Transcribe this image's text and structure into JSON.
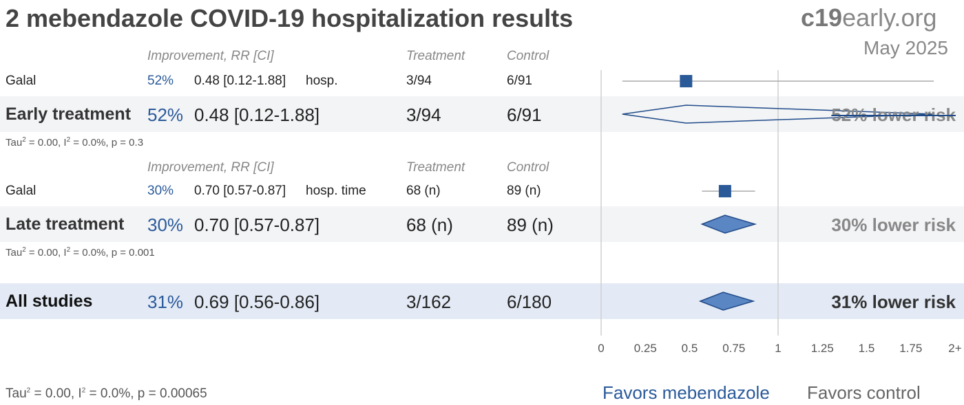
{
  "title": "2 mebendazole COVID-19 hospitalization results",
  "brand": {
    "bold": "c19",
    "rest": "early.org"
  },
  "date": "May 2025",
  "headers": {
    "improvement": "Improvement, RR [CI]",
    "treatment": "Treatment",
    "control": "Control"
  },
  "groups": [
    {
      "header_visible": true,
      "studies": [
        {
          "name": "Galal",
          "improvement": "52%",
          "rr_ci": "0.48 [0.12-1.88]",
          "outcome": "hosp.",
          "treatment": "3/94",
          "control": "6/91"
        }
      ],
      "summary": {
        "label": "Early treatment",
        "improvement": "52%",
        "rr_ci": "0.48 [0.12-1.88]",
        "treatment": "3/94",
        "control": "6/91",
        "risk_text": "52% lower risk"
      },
      "stats": {
        "tau": "Tau",
        "i": ", I",
        "rest": " = 0.00",
        "i_rest": " = 0.0%, p = 0.3"
      }
    },
    {
      "header_visible": true,
      "studies": [
        {
          "name": "Galal",
          "improvement": "30%",
          "rr_ci": "0.70 [0.57-0.87]",
          "outcome": "hosp. time",
          "treatment": "68 (n)",
          "control": "89 (n)"
        }
      ],
      "summary": {
        "label": "Late treatment",
        "improvement": "30%",
        "rr_ci": "0.70 [0.57-0.87]",
        "treatment": "68 (n)",
        "control": "89 (n)",
        "risk_text": "30% lower risk"
      },
      "stats": {
        "tau": "Tau",
        "i": ", I",
        "rest": " = 0.00",
        "i_rest": " = 0.0%, p = 0.001"
      }
    }
  ],
  "overall": {
    "label": "All studies",
    "improvement": "31%",
    "rr_ci": "0.69 [0.56-0.86]",
    "treatment": "3/162",
    "control": "6/180",
    "risk_text": "31% lower risk"
  },
  "overall_stats": {
    "tau": "Tau",
    "i": ", I",
    "rest": " = 0.00",
    "i_rest": " = 0.0%, p = 0.00065"
  },
  "favors": {
    "left": "Favors mebendazole",
    "right": "Favors control"
  },
  "colors": {
    "marker": "#2b5a98",
    "diamond_fill": "#5b86c4",
    "diamond_stroke": "#1f4a88",
    "ci_line": "#aaaaaa",
    "axis": "#cfcfcf",
    "favor_left": "#2a5a9a",
    "favor_right": "#666666"
  },
  "chart_data": {
    "type": "forest",
    "xlim": [
      0,
      2
    ],
    "x_ticks": [
      "0",
      "0.25",
      "0.5",
      "0.75",
      "1",
      "1.25",
      "1.5",
      "1.75",
      "2+"
    ],
    "tick_values": [
      0,
      0.25,
      0.5,
      0.75,
      1,
      1.25,
      1.5,
      1.75,
      2
    ],
    "reference_line": 1,
    "rows": [
      {
        "label": "Galal (hosp.)",
        "kind": "study",
        "rr": 0.48,
        "lo": 0.12,
        "hi": 1.88
      },
      {
        "label": "Early treatment",
        "kind": "summary",
        "rr": 0.48,
        "lo": 0.12,
        "hi": 1.88
      },
      {
        "label": "Galal (hosp. time)",
        "kind": "study",
        "rr": 0.7,
        "lo": 0.57,
        "hi": 0.87
      },
      {
        "label": "Late treatment",
        "kind": "summary",
        "rr": 0.7,
        "lo": 0.57,
        "hi": 0.87
      },
      {
        "label": "All studies",
        "kind": "summary",
        "rr": 0.69,
        "lo": 0.56,
        "hi": 0.86
      }
    ]
  }
}
